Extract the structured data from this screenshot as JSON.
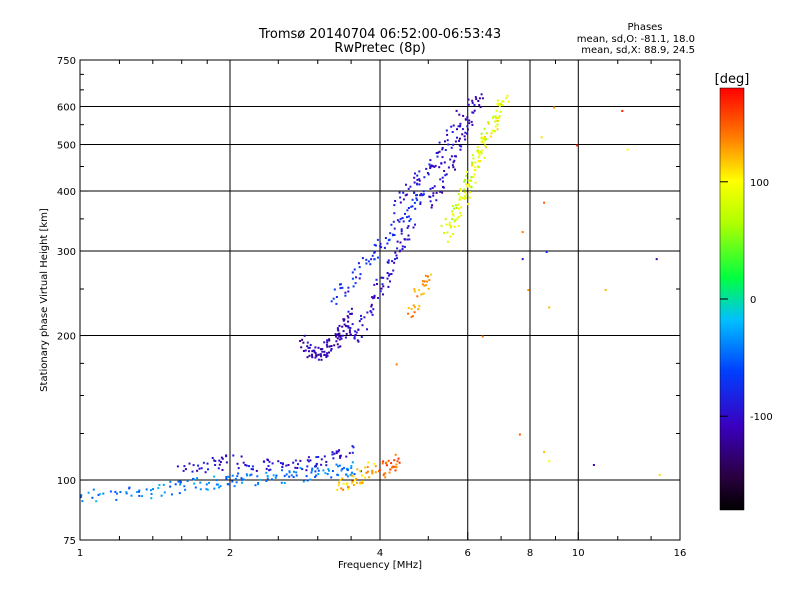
{
  "chart_data": {
    "type": "scatter",
    "title": "Tromsø 20140704 06:52:00-06:53:43",
    "subtitle": "RwPretec (8p)",
    "xlabel": "Frequency [MHz]",
    "ylabel": "Stationary phase Virtual Height [km]",
    "x_scale": "log",
    "y_scale": "log",
    "xlim": [
      1,
      16
    ],
    "ylim": [
      75,
      750
    ],
    "x_ticks": [
      "1",
      "2",
      "4",
      "6",
      "8",
      "10",
      "16"
    ],
    "y_ticks": [
      "75",
      "100",
      "200",
      "300",
      "400",
      "500",
      "600",
      "750"
    ],
    "grid": true,
    "phase_info": {
      "header": "Phases",
      "line1": "mean, sd,O: -81.1, 18.0",
      "line2": "mean, sd,X: 88.9, 24.5"
    },
    "colorbar": {
      "label": "[deg]",
      "ticks": [
        "100",
        "0",
        "-100"
      ],
      "tick_values": [
        100,
        0,
        -100
      ],
      "range": [
        -180,
        180
      ]
    },
    "traces": [
      {
        "x": [
          1.0,
          1.2,
          1.4,
          1.6,
          1.8,
          2.0,
          2.2,
          2.5,
          2.8,
          3.1,
          3.4,
          3.6
        ],
        "y": [
          93,
          94,
          95,
          97,
          99,
          100,
          101,
          102,
          103,
          104,
          105,
          106
        ],
        "phase": -40
      },
      {
        "x": [
          1.6,
          1.8,
          2.0,
          2.3,
          2.6,
          2.9,
          3.2,
          3.5
        ],
        "y": [
          105,
          108,
          110,
          108,
          107,
          109,
          112,
          115
        ],
        "phase": -95
      },
      {
        "x": [
          3.3,
          3.5,
          3.7,
          3.9
        ],
        "y": [
          98,
          100,
          103,
          107
        ],
        "phase": 120
      },
      {
        "x": [
          4.0,
          4.2,
          4.3
        ],
        "y": [
          105,
          108,
          110
        ],
        "phase": 150
      },
      {
        "x": [
          2.8,
          2.9,
          3.0,
          3.1,
          3.2,
          3.3,
          3.4,
          3.5
        ],
        "y": [
          195,
          186,
          184,
          186,
          192,
          200,
          212,
          225
        ],
        "phase": -110
      },
      {
        "x": [
          3.4,
          3.6,
          3.8,
          4.0,
          4.2,
          4.4,
          4.6
        ],
        "y": [
          205,
          200,
          225,
          255,
          280,
          310,
          340
        ],
        "phase": -100
      },
      {
        "x": [
          3.2,
          3.5,
          3.8,
          4.1,
          4.4,
          4.7,
          5.0
        ],
        "y": [
          240,
          260,
          290,
          315,
          345,
          375,
          410
        ],
        "phase": -80
      },
      {
        "x": [
          4.3,
          4.6,
          4.9,
          5.2,
          5.5,
          5.8
        ],
        "y": [
          370,
          410,
          440,
          470,
          520,
          580
        ],
        "phase": -95
      },
      {
        "x": [
          5.0,
          5.3,
          5.6,
          5.9,
          6.1,
          6.3
        ],
        "y": [
          380,
          420,
          470,
          530,
          600,
          640
        ],
        "phase": -105
      },
      {
        "x": [
          4.6,
          4.8,
          5.0
        ],
        "y": [
          220,
          250,
          270
        ],
        "phase": 130
      },
      {
        "x": [
          5.4,
          5.7,
          6.0,
          6.3,
          6.6,
          7.0
        ],
        "y": [
          330,
          380,
          420,
          480,
          540,
          620
        ],
        "phase": 75
      },
      {
        "x": [
          5.5,
          5.8,
          6.1,
          6.4,
          6.8,
          7.2
        ],
        "y": [
          320,
          370,
          430,
          500,
          570,
          640
        ],
        "phase": 95
      }
    ],
    "points": [
      {
        "x": 7.7,
        "y": 330,
        "phase": 140
      },
      {
        "x": 7.7,
        "y": 290,
        "phase": -100
      },
      {
        "x": 7.9,
        "y": 250,
        "phase": 130
      },
      {
        "x": 8.4,
        "y": 520,
        "phase": 110
      },
      {
        "x": 8.5,
        "y": 380,
        "phase": 150
      },
      {
        "x": 8.6,
        "y": 300,
        "phase": -80
      },
      {
        "x": 8.7,
        "y": 230,
        "phase": 120
      },
      {
        "x": 8.9,
        "y": 600,
        "phase": 130
      },
      {
        "x": 7.6,
        "y": 125,
        "phase": 150
      },
      {
        "x": 8.5,
        "y": 115,
        "phase": 120
      },
      {
        "x": 10.7,
        "y": 108,
        "phase": -110
      },
      {
        "x": 12.2,
        "y": 590,
        "phase": 170
      },
      {
        "x": 12.5,
        "y": 490,
        "phase": 100
      },
      {
        "x": 14.3,
        "y": 290,
        "phase": -120
      },
      {
        "x": 14.5,
        "y": 103,
        "phase": 110
      },
      {
        "x": 9.9,
        "y": 500,
        "phase": 170
      },
      {
        "x": 11.3,
        "y": 250,
        "phase": 120
      },
      {
        "x": 6.4,
        "y": 200,
        "phase": 140
      },
      {
        "x": 4.3,
        "y": 175,
        "phase": 140
      },
      {
        "x": 8.7,
        "y": 110,
        "phase": 100
      }
    ]
  }
}
